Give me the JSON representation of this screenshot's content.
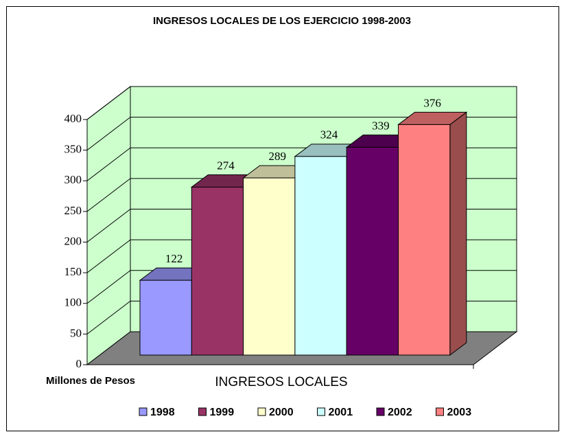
{
  "chart_data": {
    "type": "bar3d",
    "title": "INGRESOS LOCALES DE LOS EJERCICIO 1998-2003",
    "y_label": "Millones de Pesos",
    "categories": [
      "INGRESOS LOCALES"
    ],
    "series": [
      {
        "name": "1998",
        "color": "#9999ff",
        "values": [
          122
        ]
      },
      {
        "name": "1999",
        "color": "#993366",
        "values": [
          274
        ]
      },
      {
        "name": "2000",
        "color": "#ffffcc",
        "values": [
          289
        ]
      },
      {
        "name": "2001",
        "color": "#ccffff",
        "values": [
          324
        ]
      },
      {
        "name": "2002",
        "color": "#660066",
        "values": [
          339
        ]
      },
      {
        "name": "2003",
        "color": "#ff8080",
        "values": [
          376
        ]
      }
    ],
    "ylim": [
      0,
      400
    ],
    "yticks": [
      0,
      50,
      100,
      150,
      200,
      250,
      300,
      350,
      400
    ],
    "grid": true,
    "legend": "bottom"
  }
}
